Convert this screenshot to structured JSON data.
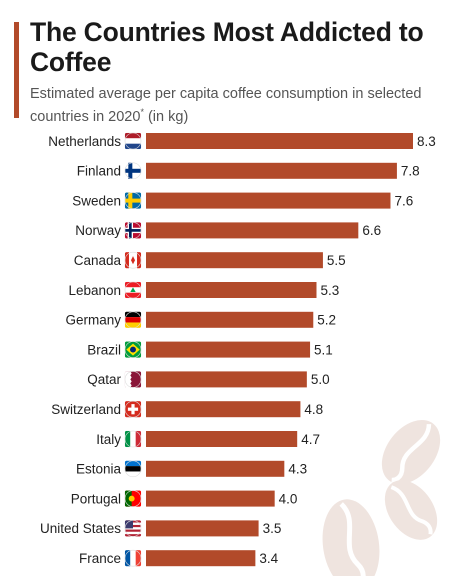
{
  "header": {
    "title": "The Countries Most Addicted to Coffee",
    "subtitle_main": "Estimated average per capita coffee consumption in selected countries in 2020",
    "subtitle_sup": "*",
    "subtitle_tail": " (in kg)"
  },
  "colors": {
    "bar": "#b24a2a",
    "accent": "#b24a2a"
  },
  "chart_data": {
    "type": "bar",
    "orientation": "horizontal",
    "categories": [
      "Netherlands",
      "Finland",
      "Sweden",
      "Norway",
      "Canada",
      "Lebanon",
      "Germany",
      "Brazil",
      "Qatar",
      "Switzerland",
      "Italy",
      "Estonia",
      "Portugal",
      "United States",
      "France"
    ],
    "values": [
      8.3,
      7.8,
      7.6,
      6.6,
      5.5,
      5.3,
      5.2,
      5.1,
      5.0,
      4.8,
      4.7,
      4.3,
      4.0,
      3.5,
      3.4
    ],
    "value_labels": [
      "8.3",
      "7.8",
      "7.6",
      "6.6",
      "5.5",
      "5.3",
      "5.2",
      "5.1",
      "5.0",
      "4.8",
      "4.7",
      "4.3",
      "4.0",
      "3.5",
      "3.4"
    ],
    "flag_icons": [
      "netherlands-flag-icon",
      "finland-flag-icon",
      "sweden-flag-icon",
      "norway-flag-icon",
      "canada-flag-icon",
      "lebanon-flag-icon",
      "germany-flag-icon",
      "brazil-flag-icon",
      "qatar-flag-icon",
      "switzerland-flag-icon",
      "italy-flag-icon",
      "estonia-flag-icon",
      "portugal-flag-icon",
      "united-states-flag-icon",
      "france-flag-icon"
    ],
    "xlim": [
      0,
      8.3
    ],
    "grid": false,
    "legend": "none"
  }
}
